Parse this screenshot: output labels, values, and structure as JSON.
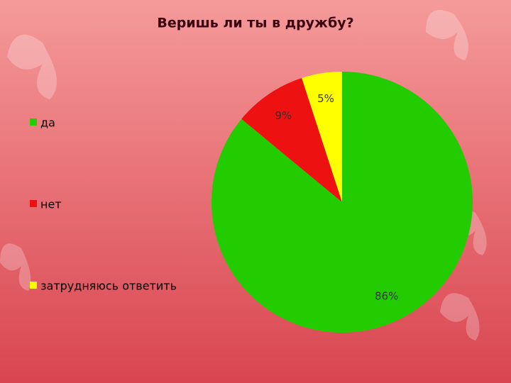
{
  "chart_data": {
    "type": "pie",
    "title": "Веришь ли ты в дружбу?",
    "categories": [
      "да",
      "нет",
      "затрудняюсь ответить"
    ],
    "values": [
      86,
      9,
      5
    ],
    "value_labels": [
      "86%",
      "9%",
      "5%"
    ],
    "colors": [
      "#22cc00",
      "#ee1111",
      "#ffff00"
    ],
    "legend": "left"
  }
}
